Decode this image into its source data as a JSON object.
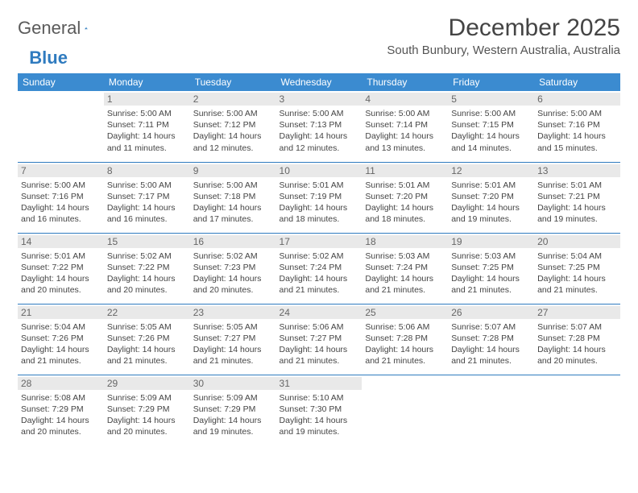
{
  "logo": {
    "part1": "General",
    "part2": "Blue"
  },
  "title": "December 2025",
  "location": "South Bunbury, Western Australia, Australia",
  "colors": {
    "header_bg": "#3b8bd0",
    "header_text": "#ffffff",
    "rule": "#2f7bbf",
    "daynum_bg": "#e9e9e9",
    "text": "#444444"
  },
  "dayHeaders": [
    "Sunday",
    "Monday",
    "Tuesday",
    "Wednesday",
    "Thursday",
    "Friday",
    "Saturday"
  ],
  "weeks": [
    [
      null,
      {
        "n": "1",
        "sr": "5:00 AM",
        "ss": "7:11 PM",
        "dl": "14 hours and 11 minutes."
      },
      {
        "n": "2",
        "sr": "5:00 AM",
        "ss": "7:12 PM",
        "dl": "14 hours and 12 minutes."
      },
      {
        "n": "3",
        "sr": "5:00 AM",
        "ss": "7:13 PM",
        "dl": "14 hours and 12 minutes."
      },
      {
        "n": "4",
        "sr": "5:00 AM",
        "ss": "7:14 PM",
        "dl": "14 hours and 13 minutes."
      },
      {
        "n": "5",
        "sr": "5:00 AM",
        "ss": "7:15 PM",
        "dl": "14 hours and 14 minutes."
      },
      {
        "n": "6",
        "sr": "5:00 AM",
        "ss": "7:16 PM",
        "dl": "14 hours and 15 minutes."
      }
    ],
    [
      {
        "n": "7",
        "sr": "5:00 AM",
        "ss": "7:16 PM",
        "dl": "14 hours and 16 minutes."
      },
      {
        "n": "8",
        "sr": "5:00 AM",
        "ss": "7:17 PM",
        "dl": "14 hours and 16 minutes."
      },
      {
        "n": "9",
        "sr": "5:00 AM",
        "ss": "7:18 PM",
        "dl": "14 hours and 17 minutes."
      },
      {
        "n": "10",
        "sr": "5:01 AM",
        "ss": "7:19 PM",
        "dl": "14 hours and 18 minutes."
      },
      {
        "n": "11",
        "sr": "5:01 AM",
        "ss": "7:20 PM",
        "dl": "14 hours and 18 minutes."
      },
      {
        "n": "12",
        "sr": "5:01 AM",
        "ss": "7:20 PM",
        "dl": "14 hours and 19 minutes."
      },
      {
        "n": "13",
        "sr": "5:01 AM",
        "ss": "7:21 PM",
        "dl": "14 hours and 19 minutes."
      }
    ],
    [
      {
        "n": "14",
        "sr": "5:01 AM",
        "ss": "7:22 PM",
        "dl": "14 hours and 20 minutes."
      },
      {
        "n": "15",
        "sr": "5:02 AM",
        "ss": "7:22 PM",
        "dl": "14 hours and 20 minutes."
      },
      {
        "n": "16",
        "sr": "5:02 AM",
        "ss": "7:23 PM",
        "dl": "14 hours and 20 minutes."
      },
      {
        "n": "17",
        "sr": "5:02 AM",
        "ss": "7:24 PM",
        "dl": "14 hours and 21 minutes."
      },
      {
        "n": "18",
        "sr": "5:03 AM",
        "ss": "7:24 PM",
        "dl": "14 hours and 21 minutes."
      },
      {
        "n": "19",
        "sr": "5:03 AM",
        "ss": "7:25 PM",
        "dl": "14 hours and 21 minutes."
      },
      {
        "n": "20",
        "sr": "5:04 AM",
        "ss": "7:25 PM",
        "dl": "14 hours and 21 minutes."
      }
    ],
    [
      {
        "n": "21",
        "sr": "5:04 AM",
        "ss": "7:26 PM",
        "dl": "14 hours and 21 minutes."
      },
      {
        "n": "22",
        "sr": "5:05 AM",
        "ss": "7:26 PM",
        "dl": "14 hours and 21 minutes."
      },
      {
        "n": "23",
        "sr": "5:05 AM",
        "ss": "7:27 PM",
        "dl": "14 hours and 21 minutes."
      },
      {
        "n": "24",
        "sr": "5:06 AM",
        "ss": "7:27 PM",
        "dl": "14 hours and 21 minutes."
      },
      {
        "n": "25",
        "sr": "5:06 AM",
        "ss": "7:28 PM",
        "dl": "14 hours and 21 minutes."
      },
      {
        "n": "26",
        "sr": "5:07 AM",
        "ss": "7:28 PM",
        "dl": "14 hours and 21 minutes."
      },
      {
        "n": "27",
        "sr": "5:07 AM",
        "ss": "7:28 PM",
        "dl": "14 hours and 20 minutes."
      }
    ],
    [
      {
        "n": "28",
        "sr": "5:08 AM",
        "ss": "7:29 PM",
        "dl": "14 hours and 20 minutes."
      },
      {
        "n": "29",
        "sr": "5:09 AM",
        "ss": "7:29 PM",
        "dl": "14 hours and 20 minutes."
      },
      {
        "n": "30",
        "sr": "5:09 AM",
        "ss": "7:29 PM",
        "dl": "14 hours and 19 minutes."
      },
      {
        "n": "31",
        "sr": "5:10 AM",
        "ss": "7:30 PM",
        "dl": "14 hours and 19 minutes."
      },
      null,
      null,
      null
    ]
  ],
  "labels": {
    "sunrise": "Sunrise:",
    "sunset": "Sunset:",
    "daylight": "Daylight:"
  }
}
